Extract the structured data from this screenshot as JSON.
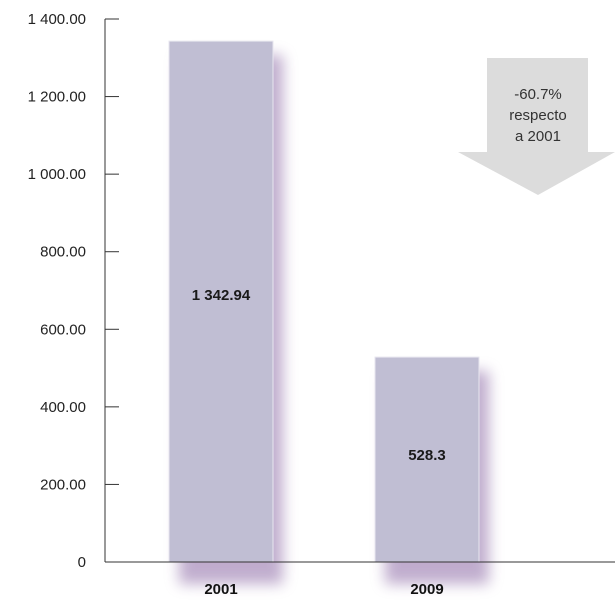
{
  "chart_data": {
    "type": "bar",
    "categories": [
      "2001",
      "2009"
    ],
    "values": [
      1342.94,
      528.3
    ],
    "value_labels": [
      "1 342.94",
      "528.3"
    ],
    "ylim": [
      0,
      1400
    ],
    "y_ticks": [
      0,
      200,
      400,
      600,
      800,
      1000,
      1200,
      1400
    ],
    "y_tick_labels": [
      "0",
      "200.00",
      "400.00",
      "600.00",
      "800.00",
      "1 000.00",
      "1 200.00",
      "1 400.00"
    ],
    "grid": false,
    "annotation": {
      "lines": [
        "-60.7%",
        "respecto",
        "a 2001"
      ]
    },
    "colors": {
      "bar": "#c0bed3",
      "bar_edge": "#e7e6ef",
      "shadow": "#8d6ba6",
      "arrow": "#dcdcdc",
      "axis": "#333333"
    }
  }
}
